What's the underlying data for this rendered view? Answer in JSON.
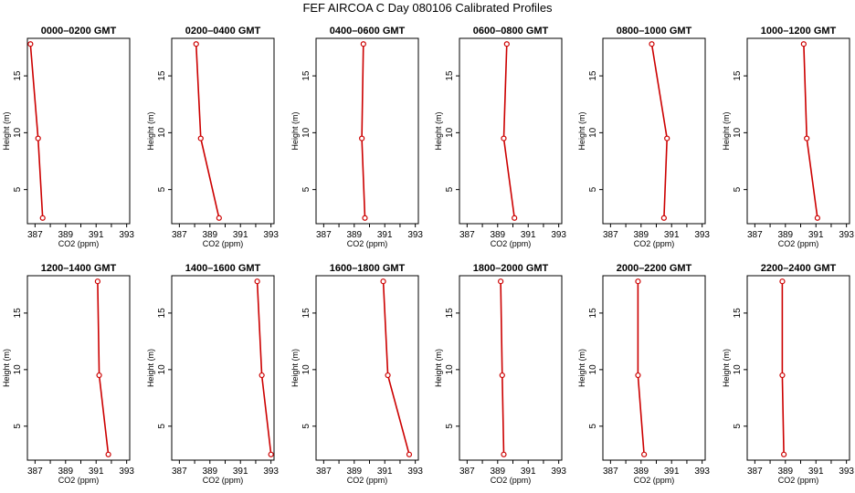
{
  "figure": {
    "title": "FEF AIRCOA C  Day 080106  Calibrated Profiles"
  },
  "chart_data": [
    {
      "type": "line",
      "title": "0000–0200 GMT",
      "xlabel": "CO2 (ppm)",
      "ylabel": "Height (m)",
      "xlim": [
        386.5,
        393.2
      ],
      "ylim": [
        2,
        18.3
      ],
      "x_ticks": [
        "387",
        "389",
        "391",
        "393"
      ],
      "y_ticks": [
        "5",
        "10",
        "15"
      ],
      "x": [
        386.7,
        387.2,
        387.5
      ],
      "y": [
        17.8,
        9.5,
        2.5
      ]
    },
    {
      "type": "line",
      "title": "0200–0400 GMT",
      "xlabel": "CO2 (ppm)",
      "ylabel": "Height (m)",
      "xlim": [
        386.5,
        393.2
      ],
      "ylim": [
        2,
        18.3
      ],
      "x_ticks": [
        "387",
        "389",
        "391",
        "393"
      ],
      "y_ticks": [
        "5",
        "10",
        "15"
      ],
      "x": [
        388.1,
        388.4,
        389.6
      ],
      "y": [
        17.8,
        9.5,
        2.5
      ]
    },
    {
      "type": "line",
      "title": "0400–0600 GMT",
      "xlabel": "CO2 (ppm)",
      "ylabel": "Height (m)",
      "xlim": [
        386.5,
        393.2
      ],
      "ylim": [
        2,
        18.3
      ],
      "x_ticks": [
        "387",
        "389",
        "391",
        "393"
      ],
      "y_ticks": [
        "5",
        "10",
        "15"
      ],
      "x": [
        389.6,
        389.5,
        389.7
      ],
      "y": [
        17.8,
        9.5,
        2.5
      ]
    },
    {
      "type": "line",
      "title": "0600–0800 GMT",
      "xlabel": "CO2 (ppm)",
      "ylabel": "Height (m)",
      "xlim": [
        386.5,
        393.2
      ],
      "ylim": [
        2,
        18.3
      ],
      "x_ticks": [
        "387",
        "389",
        "391",
        "393"
      ],
      "y_ticks": [
        "5",
        "10",
        "15"
      ],
      "x": [
        389.6,
        389.4,
        390.1
      ],
      "y": [
        17.8,
        9.5,
        2.5
      ]
    },
    {
      "type": "line",
      "title": "0800–1000 GMT",
      "xlabel": "CO2 (ppm)",
      "ylabel": "Height (m)",
      "xlim": [
        386.5,
        393.2
      ],
      "ylim": [
        2,
        18.3
      ],
      "x_ticks": [
        "387",
        "389",
        "391",
        "393"
      ],
      "y_ticks": [
        "5",
        "10",
        "15"
      ],
      "x": [
        389.7,
        390.7,
        390.5
      ],
      "y": [
        17.8,
        9.5,
        2.5
      ]
    },
    {
      "type": "line",
      "title": "1000–1200 GMT",
      "xlabel": "CO2 (ppm)",
      "ylabel": "Height (m)",
      "xlim": [
        386.5,
        393.2
      ],
      "ylim": [
        2,
        18.3
      ],
      "x_ticks": [
        "387",
        "389",
        "391",
        "393"
      ],
      "y_ticks": [
        "5",
        "10",
        "15"
      ],
      "x": [
        390.2,
        390.4,
        391.1
      ],
      "y": [
        17.8,
        9.5,
        2.5
      ]
    },
    {
      "type": "line",
      "title": "1200–1400 GMT",
      "xlabel": "CO2 (ppm)",
      "ylabel": "Height (m)",
      "xlim": [
        386.5,
        393.2
      ],
      "ylim": [
        2,
        18.3
      ],
      "x_ticks": [
        "387",
        "389",
        "391",
        "393"
      ],
      "y_ticks": [
        "5",
        "10",
        "15"
      ],
      "x": [
        391.1,
        391.2,
        391.8
      ],
      "y": [
        17.8,
        9.5,
        2.5
      ]
    },
    {
      "type": "line",
      "title": "1400–1600 GMT",
      "xlabel": "CO2 (ppm)",
      "ylabel": "Height (m)",
      "xlim": [
        386.5,
        393.2
      ],
      "ylim": [
        2,
        18.3
      ],
      "x_ticks": [
        "387",
        "389",
        "391",
        "393"
      ],
      "y_ticks": [
        "5",
        "10",
        "15"
      ],
      "x": [
        392.1,
        392.4,
        393.0
      ],
      "y": [
        17.8,
        9.5,
        2.5
      ]
    },
    {
      "type": "line",
      "title": "1600–1800 GMT",
      "xlabel": "CO2 (ppm)",
      "ylabel": "Height (m)",
      "xlim": [
        386.5,
        393.2
      ],
      "ylim": [
        2,
        18.3
      ],
      "x_ticks": [
        "387",
        "389",
        "391",
        "393"
      ],
      "y_ticks": [
        "5",
        "10",
        "15"
      ],
      "x": [
        390.9,
        391.2,
        392.6
      ],
      "y": [
        17.8,
        9.5,
        2.5
      ]
    },
    {
      "type": "line",
      "title": "1800–2000 GMT",
      "xlabel": "CO2 (ppm)",
      "ylabel": "Height (m)",
      "xlim": [
        386.5,
        393.2
      ],
      "ylim": [
        2,
        18.3
      ],
      "x_ticks": [
        "387",
        "389",
        "391",
        "393"
      ],
      "y_ticks": [
        "5",
        "10",
        "15"
      ],
      "x": [
        389.2,
        389.3,
        389.4
      ],
      "y": [
        17.8,
        9.5,
        2.5
      ]
    },
    {
      "type": "line",
      "title": "2000–2200 GMT",
      "xlabel": "CO2 (ppm)",
      "ylabel": "Height (m)",
      "xlim": [
        386.5,
        393.2
      ],
      "ylim": [
        2,
        18.3
      ],
      "x_ticks": [
        "387",
        "389",
        "391",
        "393"
      ],
      "y_ticks": [
        "5",
        "10",
        "15"
      ],
      "x": [
        388.8,
        388.8,
        389.2
      ],
      "y": [
        17.8,
        9.5,
        2.5
      ]
    },
    {
      "type": "line",
      "title": "2200–2400 GMT",
      "xlabel": "CO2 (ppm)",
      "ylabel": "Height (m)",
      "xlim": [
        386.5,
        393.2
      ],
      "ylim": [
        2,
        18.3
      ],
      "x_ticks": [
        "387",
        "389",
        "391",
        "393"
      ],
      "y_ticks": [
        "5",
        "10",
        "15"
      ],
      "x": [
        388.8,
        388.8,
        388.9
      ],
      "y": [
        17.8,
        9.5,
        2.5
      ]
    }
  ],
  "style": {
    "series_color": "#cc0000",
    "axis_color": "#000000"
  }
}
